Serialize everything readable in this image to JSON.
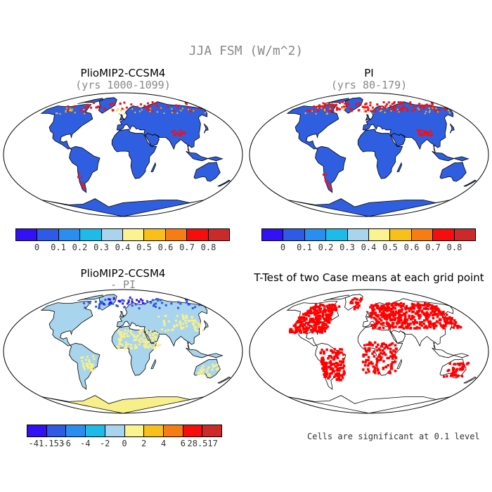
{
  "figure": {
    "title": "JJA FSM (W/m^2)",
    "colors": {
      "land_low": "#2f5fe0",
      "land_zero_diff": "#a8d4ee",
      "land_pos_diff": "#f7ef8a",
      "snow_high": "#e8141e",
      "significant": "#ff0000",
      "border": "#000000"
    }
  },
  "panels": [
    {
      "id": "top-left",
      "title": "PlioMIP2-CCSM4",
      "subtitle": "(yrs 1000-1099)",
      "map_style": "absolute"
    },
    {
      "id": "top-right",
      "title": "PI",
      "subtitle": "(yrs 80-179)",
      "map_style": "absolute"
    },
    {
      "id": "bottom-left",
      "title": "PlioMIP2-CCSM4",
      "subtitle": "- PI",
      "map_style": "difference"
    },
    {
      "id": "bottom-right",
      "title": "T-Test of two Case means at each grid point",
      "subtitle": "",
      "map_style": "significance"
    }
  ],
  "colorbar_abs": {
    "colors": [
      "#3311f5",
      "#2d5ae6",
      "#2a8ef0",
      "#1fbbe8",
      "#a8d4ee",
      "#fbf290",
      "#f8c018",
      "#f77d12",
      "#f80d0d",
      "#cc2a2a"
    ],
    "ticks": [
      "0",
      "0.1",
      "0.2",
      "0.3",
      "0.4",
      "0.5",
      "0.6",
      "0.7",
      "0.8"
    ]
  },
  "colorbar_diff": {
    "colors": [
      "#3311f5",
      "#2d5ae6",
      "#2a8ef0",
      "#1fbbe8",
      "#a8d4ee",
      "#fbf290",
      "#f8c018",
      "#f77d12",
      "#f80d0d",
      "#cc2a2a"
    ],
    "ticks": [
      "-41.153",
      "-6",
      "-4",
      "-2",
      "0",
      "2",
      "4",
      "6",
      "28.517"
    ]
  },
  "significance_note": "Cells are significant at 0.1 level"
}
